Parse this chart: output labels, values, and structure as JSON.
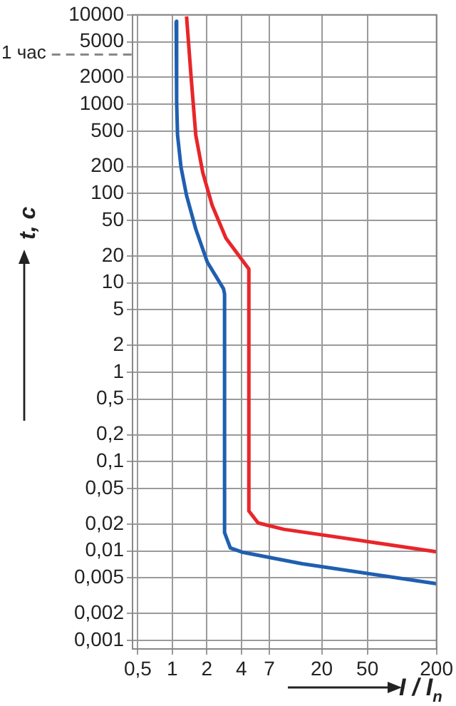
{
  "chart_data": {
    "type": "line",
    "xlabel": "I / I$_{n}$",
    "ylabel": "t, c",
    "log": "xy",
    "grid": true,
    "legend": false,
    "line_style": "solid",
    "xlim": [
      0.45,
      200
    ],
    "ylim": [
      0.0008,
      10000
    ],
    "xticks": [
      {
        "value": 0.5,
        "label": "0,5"
      },
      1,
      2,
      4,
      7,
      20,
      50,
      200
    ],
    "yticks": [
      10000,
      5000,
      2000,
      1000,
      500,
      200,
      100,
      50,
      20,
      10,
      5,
      2,
      1,
      {
        "value": 0.5,
        "label": "0,5"
      },
      {
        "value": 0.2,
        "label": "0,2"
      },
      {
        "value": 0.1,
        "label": "0,1"
      },
      {
        "value": 0.05,
        "label": "0,05"
      },
      {
        "value": 0.02,
        "label": "0,02"
      },
      {
        "value": 0.01,
        "label": "0,01"
      },
      {
        "value": 0.005,
        "label": "0,005"
      },
      {
        "value": 0.002,
        "label": "0,002"
      },
      {
        "value": 0.001,
        "label": "0,001"
      }
    ],
    "ref_lines": [
      {
        "axis": "y",
        "value": 3600,
        "label": "1 час",
        "line_style": "dashed",
        "color": "#888888"
      }
    ],
    "series": [
      {
        "color": "#1f5fb0",
        "x": [
          1.08,
          1.09,
          1.11,
          1.19,
          1.33,
          1.6,
          2.02,
          2.79,
          2.85,
          2.85,
          3.2,
          4.04,
          13.5,
          200
        ],
        "values": [
          8500,
          1050,
          450,
          197,
          95,
          40,
          17,
          8.6,
          7.5,
          0.016,
          0.0108,
          0.0097,
          0.0072,
          0.0043
        ]
      },
      {
        "color": "#e8262a",
        "x": [
          1.33,
          1.46,
          1.6,
          1.84,
          2.22,
          2.93,
          4.64,
          4.64,
          5.58,
          9.3,
          200
        ],
        "values": [
          9600,
          1950,
          450,
          172,
          74,
          31.6,
          14.3,
          0.028,
          0.0206,
          0.0175,
          0.0098
        ]
      }
    ]
  }
}
